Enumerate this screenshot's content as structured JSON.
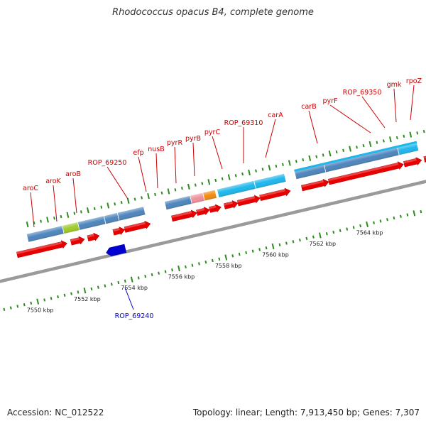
{
  "title": "Rhodococcus opacus B4, complete genome",
  "footer": {
    "accession": "Accession: NC_012522",
    "summary": "Topology: linear; Length: 7,913,450 bp; Genes: 7,307"
  },
  "scale": {
    "labels": [
      "7550 kbp",
      "7552 kbp",
      "7554 kbp",
      "7556 kbp",
      "7558 kbp",
      "7560 kbp",
      "7562 kbp",
      "7564 kbp"
    ]
  },
  "gene_labels_forward": [
    "aroC",
    "aroK",
    "aroB",
    "ROP_69250",
    "efp",
    "nusB",
    "pyrR",
    "pyrB",
    "pyrC",
    "ROP_69310",
    "carA",
    "carB",
    "pyrF",
    "ROP_69350",
    "gmk",
    "rpoZ"
  ],
  "gene_labels_reverse": [
    "ROP_69240"
  ],
  "colors": {
    "forward_gene": "#e80000",
    "reverse_gene": "#0000d0",
    "forward_label": "#cc0000",
    "reverse_label": "#0000cc",
    "backbone": "#9a9a9a",
    "ticks": "#2e8b1e",
    "cog_steelblue": "#4e85bd",
    "cog_cyan": "#1eb7ec",
    "cog_pink": "#f0909a",
    "cog_orange": "#f08c10",
    "cog_lime": "#9ecb2a"
  }
}
